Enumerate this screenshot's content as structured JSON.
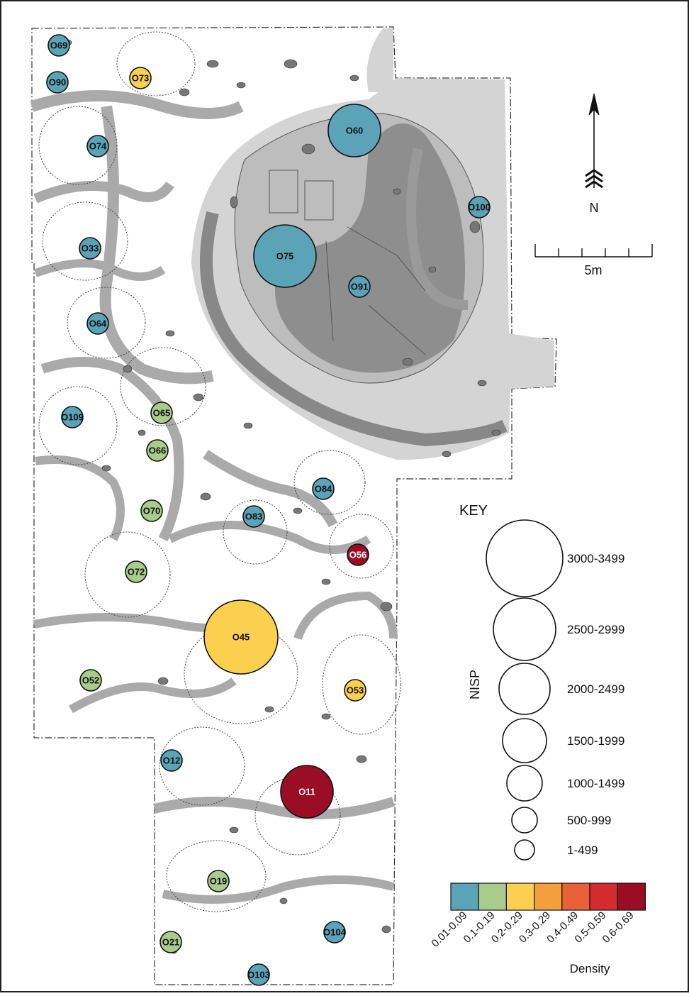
{
  "legend": {
    "key_title": "KEY",
    "nisp_label": "NISP",
    "size_classes": [
      "3000-3499",
      "2500-2999",
      "2000-2499",
      "1500-1999",
      "1000-1499",
      "500-999",
      "1-499"
    ],
    "density_title": "Density",
    "density_classes": [
      {
        "label": "0.01-0.09",
        "color": "#5ba4b8"
      },
      {
        "label": "0.1-0.19",
        "color": "#a9cb8c"
      },
      {
        "label": "0.2-0.29",
        "color": "#fbd04e"
      },
      {
        "label": "0.3-0.29",
        "color": "#f3a03c"
      },
      {
        "label": "0.4-0.49",
        "color": "#e9603a"
      },
      {
        "label": "0.5-0.59",
        "color": "#d42b2e"
      },
      {
        "label": "0.6-0.69",
        "color": "#990d25"
      }
    ]
  },
  "scale": {
    "label": "5m"
  },
  "north": {
    "label": "N"
  },
  "features": [
    {
      "id": "O69",
      "size": "1-499",
      "density": "0.01-0.09"
    },
    {
      "id": "O90",
      "size": "1-499",
      "density": "0.01-0.09"
    },
    {
      "id": "O73",
      "size": "1-499",
      "density": "0.2-0.29"
    },
    {
      "id": "O74",
      "size": "1-499",
      "density": "0.01-0.09"
    },
    {
      "id": "O60",
      "size": "2000-2499",
      "density": "0.01-0.09"
    },
    {
      "id": "O100",
      "size": "1-499",
      "density": "0.01-0.09"
    },
    {
      "id": "O33",
      "size": "1-499",
      "density": "0.01-0.09"
    },
    {
      "id": "O75",
      "size": "2500-2999",
      "density": "0.01-0.09"
    },
    {
      "id": "O91",
      "size": "1-499",
      "density": "0.01-0.09"
    },
    {
      "id": "O64",
      "size": "1-499",
      "density": "0.01-0.09"
    },
    {
      "id": "O109",
      "size": "1-499",
      "density": "0.01-0.09"
    },
    {
      "id": "O65",
      "size": "1-499",
      "density": "0.1-0.19"
    },
    {
      "id": "O66",
      "size": "1-499",
      "density": "0.1-0.19"
    },
    {
      "id": "O84",
      "size": "1-499",
      "density": "0.01-0.09"
    },
    {
      "id": "O70",
      "size": "1-499",
      "density": "0.1-0.19"
    },
    {
      "id": "O83",
      "size": "1-499",
      "density": "0.01-0.09"
    },
    {
      "id": "O56",
      "size": "1-499",
      "density": "0.6-0.69"
    },
    {
      "id": "O72",
      "size": "1-499",
      "density": "0.1-0.19"
    },
    {
      "id": "O45",
      "size": "3000-3499",
      "density": "0.2-0.29"
    },
    {
      "id": "O52",
      "size": "1-499",
      "density": "0.1-0.19"
    },
    {
      "id": "O53",
      "size": "1-499",
      "density": "0.2-0.29"
    },
    {
      "id": "O12",
      "size": "1-499",
      "density": "0.01-0.09"
    },
    {
      "id": "O11",
      "size": "2000-2499",
      "density": "0.6-0.69"
    },
    {
      "id": "O19",
      "size": "1-499",
      "density": "0.1-0.19"
    },
    {
      "id": "O104",
      "size": "1-499",
      "density": "0.01-0.09"
    },
    {
      "id": "O21",
      "size": "1-499",
      "density": "0.1-0.19"
    },
    {
      "id": "O103",
      "size": "1-499",
      "density": "0.01-0.09"
    }
  ]
}
